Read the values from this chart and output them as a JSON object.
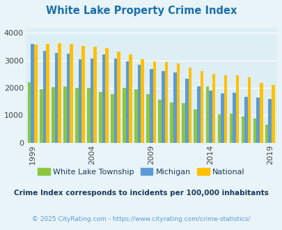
{
  "title": "White Lake Property Crime Index",
  "title_color": "#1a6faf",
  "years": [
    1999,
    2000,
    2001,
    2002,
    2003,
    2004,
    2005,
    2006,
    2007,
    2008,
    2009,
    2010,
    2011,
    2012,
    2013,
    2014,
    2015,
    2016,
    2017,
    2018,
    2019
  ],
  "white_lake": [
    2200,
    1950,
    2030,
    2060,
    2000,
    2000,
    1850,
    1780,
    1990,
    1950,
    1780,
    1580,
    1460,
    1440,
    1210,
    2040,
    1030,
    1050,
    960,
    870,
    660
  ],
  "michigan": [
    3600,
    3350,
    3270,
    3250,
    3050,
    3070,
    3220,
    3060,
    2960,
    2830,
    2700,
    2620,
    2560,
    2330,
    2040,
    1910,
    1800,
    1810,
    1660,
    1640,
    1600
  ],
  "national": [
    3580,
    3610,
    3620,
    3600,
    3520,
    3500,
    3440,
    3320,
    3220,
    3050,
    2980,
    2950,
    2900,
    2730,
    2600,
    2520,
    2470,
    2450,
    2380,
    2180,
    2110
  ],
  "white_lake_color": "#8dc63f",
  "michigan_color": "#5b9bd5",
  "national_color": "#ffc000",
  "bg_color": "#e8f4f8",
  "plot_bg_color": "#ddeef5",
  "grid_color": "#ffffff",
  "ylabel_ticks": [
    0,
    1000,
    2000,
    3000,
    4000
  ],
  "x_tick_years": [
    1999,
    2004,
    2009,
    2014,
    2019
  ],
  "ylim": [
    0,
    4200
  ],
  "subtitle": "Crime Index corresponds to incidents per 100,000 inhabitants",
  "subtitle_color": "#1a3a5c",
  "footer": "© 2025 CityRating.com - https://www.cityrating.com/crime-statistics/",
  "footer_color": "#5b9bd5",
  "legend_labels": [
    "White Lake Township",
    "Michigan",
    "National"
  ]
}
